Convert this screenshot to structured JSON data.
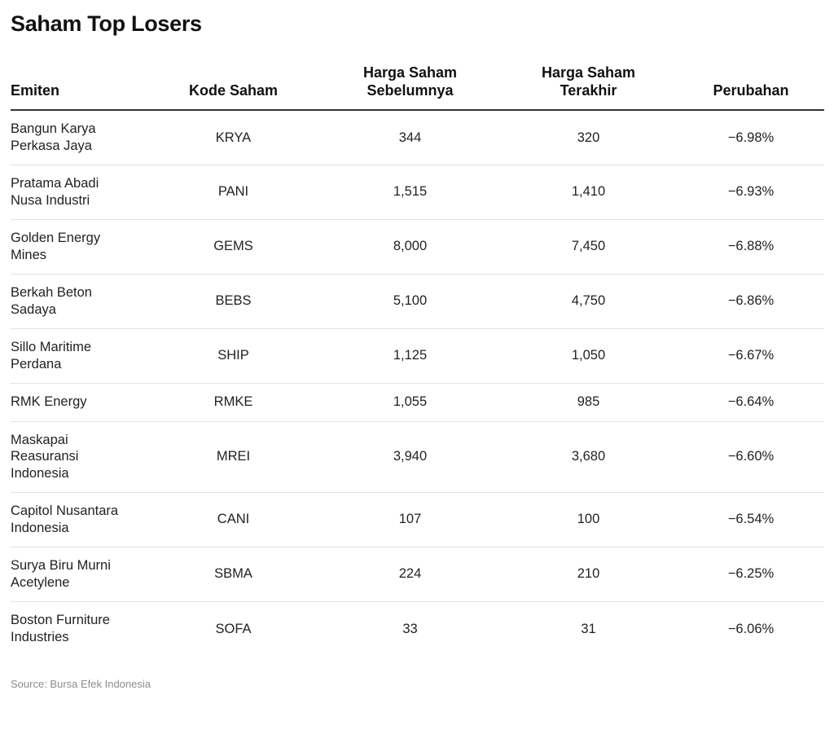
{
  "title": "Saham Top Losers",
  "source": "Source: Bursa Efek Indonesia",
  "chart_data": {
    "type": "table",
    "title": "Saham Top Losers",
    "columns": [
      {
        "line1": "Emiten",
        "line2": ""
      },
      {
        "line1": "Kode Saham",
        "line2": ""
      },
      {
        "line1": "Harga Saham",
        "line2": "Sebelumnya"
      },
      {
        "line1": "Harga Saham",
        "line2": "Terakhir"
      },
      {
        "line1": "Perubahan",
        "line2": ""
      }
    ],
    "rows": [
      {
        "name_lines": [
          "Bangun Karya",
          "Perkasa Jaya"
        ],
        "code": "KRYA",
        "prev": "344",
        "last": "320",
        "change": "−6.98%"
      },
      {
        "name_lines": [
          "Pratama Abadi",
          "Nusa Industri"
        ],
        "code": "PANI",
        "prev": "1,515",
        "last": "1,410",
        "change": "−6.93%"
      },
      {
        "name_lines": [
          "Golden Energy",
          "Mines"
        ],
        "code": "GEMS",
        "prev": "8,000",
        "last": "7,450",
        "change": "−6.88%"
      },
      {
        "name_lines": [
          "Berkah Beton",
          "Sadaya"
        ],
        "code": "BEBS",
        "prev": "5,100",
        "last": "4,750",
        "change": "−6.86%"
      },
      {
        "name_lines": [
          "Sillo Maritime",
          "Perdana"
        ],
        "code": "SHIP",
        "prev": "1,125",
        "last": "1,050",
        "change": "−6.67%"
      },
      {
        "name_lines": [
          "RMK Energy"
        ],
        "code": "RMKE",
        "prev": "1,055",
        "last": "985",
        "change": "−6.64%"
      },
      {
        "name_lines": [
          "Maskapai",
          "Reasuransi",
          "Indonesia"
        ],
        "code": "MREI",
        "prev": "3,940",
        "last": "3,680",
        "change": "−6.60%"
      },
      {
        "name_lines": [
          "Capitol Nusantara",
          "Indonesia"
        ],
        "code": "CANI",
        "prev": "107",
        "last": "100",
        "change": "−6.54%"
      },
      {
        "name_lines": [
          "Surya Biru Murni",
          "Acetylene"
        ],
        "code": "SBMA",
        "prev": "224",
        "last": "210",
        "change": "−6.25%"
      },
      {
        "name_lines": [
          "Boston Furniture",
          "Industries"
        ],
        "code": "SOFA",
        "prev": "33",
        "last": "31",
        "change": "−6.06%"
      }
    ]
  }
}
